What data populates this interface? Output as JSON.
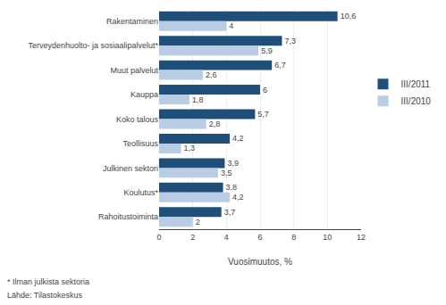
{
  "chart_data": {
    "type": "bar",
    "orientation": "horizontal",
    "xlabel": "Vuosimuutos, %",
    "categories": [
      "Rakentaminen",
      "Terveydenhuolto- ja sosiaalipalvelut*",
      "Muut palvelut",
      "Kauppa",
      "Koko talous",
      "Teollisuus",
      "Julkinen sektori",
      "Koulutus*",
      "Rahoitustoiminta"
    ],
    "series": [
      {
        "name": "III/2011",
        "color": "#1f4e79",
        "values": [
          10.6,
          7.3,
          6.7,
          6.0,
          5.7,
          4.2,
          3.9,
          3.8,
          3.7
        ],
        "value_labels": [
          "10,6",
          "7,3",
          "6,7",
          "6",
          "5,7",
          "4,2",
          "3,9",
          "3,8",
          "3,7"
        ]
      },
      {
        "name": "III/2010",
        "color": "#b8cce4",
        "values": [
          4.0,
          5.9,
          2.6,
          1.8,
          2.8,
          1.3,
          3.5,
          4.2,
          2.0
        ],
        "value_labels": [
          "4",
          "5,9",
          "2,6",
          "1,8",
          "2,8",
          "1,3",
          "3,5",
          "4,2",
          "2"
        ]
      }
    ],
    "xlim": [
      0,
      12
    ],
    "xticks": [
      0,
      2,
      4,
      6,
      8,
      10,
      12
    ],
    "grid": true,
    "legend": "right",
    "data_labels": true,
    "annotations": [
      "* Ilman julkista sektoria",
      "Lähde: Tilastokeskus"
    ]
  }
}
